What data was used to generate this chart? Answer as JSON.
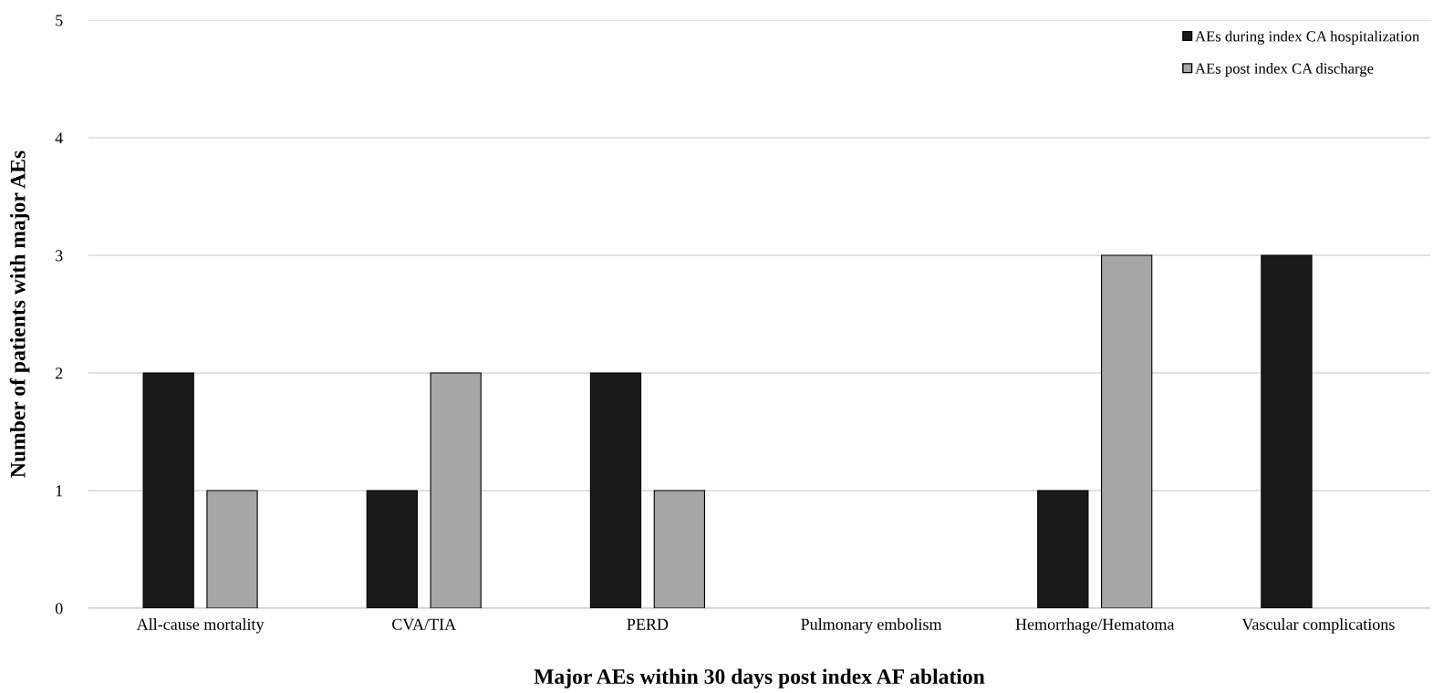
{
  "chart_data": {
    "type": "bar",
    "xlabel": "Major AEs within 30 days post index AF ablation",
    "ylabel": "Number of patients with major AEs",
    "categories": [
      "All-cause mortality",
      "CVA/TIA",
      "PERD",
      "Pulmonary embolism",
      "Hemorrhage/Hematoma",
      "Vascular complications"
    ],
    "series": [
      {
        "name": "AEs during index CA hospitalization",
        "color": "#1a1a1a",
        "values": [
          2,
          1,
          2,
          0,
          1,
          3
        ]
      },
      {
        "name": "AEs post index CA discharge",
        "color": "#a6a6a6",
        "values": [
          1,
          2,
          1,
          0,
          3,
          0
        ]
      }
    ],
    "ylim": [
      0,
      5
    ],
    "yticks": [
      0,
      1,
      2,
      3,
      4,
      5
    ],
    "grid": "y",
    "legend": "top right"
  }
}
